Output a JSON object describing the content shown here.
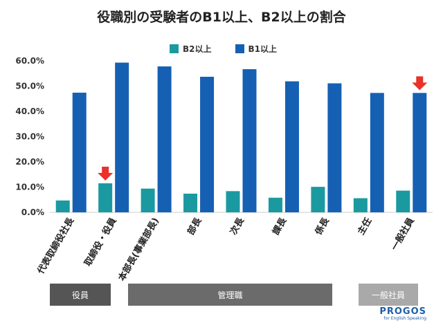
{
  "chart_data": {
    "type": "bar",
    "title": "役職別の受験者のB1以上、B2以上の割合",
    "categories": [
      "代表取締役社長",
      "取締役・役員",
      "本部長(事業部長)",
      "部長",
      "次長",
      "課長",
      "係長",
      "主任",
      "一般社員"
    ],
    "series": [
      {
        "name": "B2以上",
        "color": "#1a9aa0",
        "values": [
          4.7,
          11.5,
          9.4,
          7.4,
          8.4,
          5.8,
          10.1,
          5.6,
          8.6
        ]
      },
      {
        "name": "B1以上",
        "color": "#1660b4",
        "values": [
          47.4,
          59.3,
          57.8,
          53.7,
          56.7,
          51.9,
          51.1,
          47.3,
          47.3
        ]
      }
    ],
    "ylim": [
      0,
      60
    ],
    "yticks": [
      "0.0%",
      "10.0%",
      "20.0%",
      "30.0%",
      "40.0%",
      "50.0%",
      "60.0%"
    ],
    "grid": false,
    "legend_position": "top",
    "highlight_arrows": [
      "取締役・役員",
      "一般社員"
    ],
    "arrow_color": "#e8322b"
  },
  "groups": [
    {
      "label": "役員",
      "color": "#555555"
    },
    {
      "label": "管理職",
      "color": "#6b6b6b"
    },
    {
      "label": "一般社員",
      "color": "#a9a9a9"
    }
  ],
  "brand": {
    "name": "PROGOS",
    "tagline": "for English Speaking"
  }
}
